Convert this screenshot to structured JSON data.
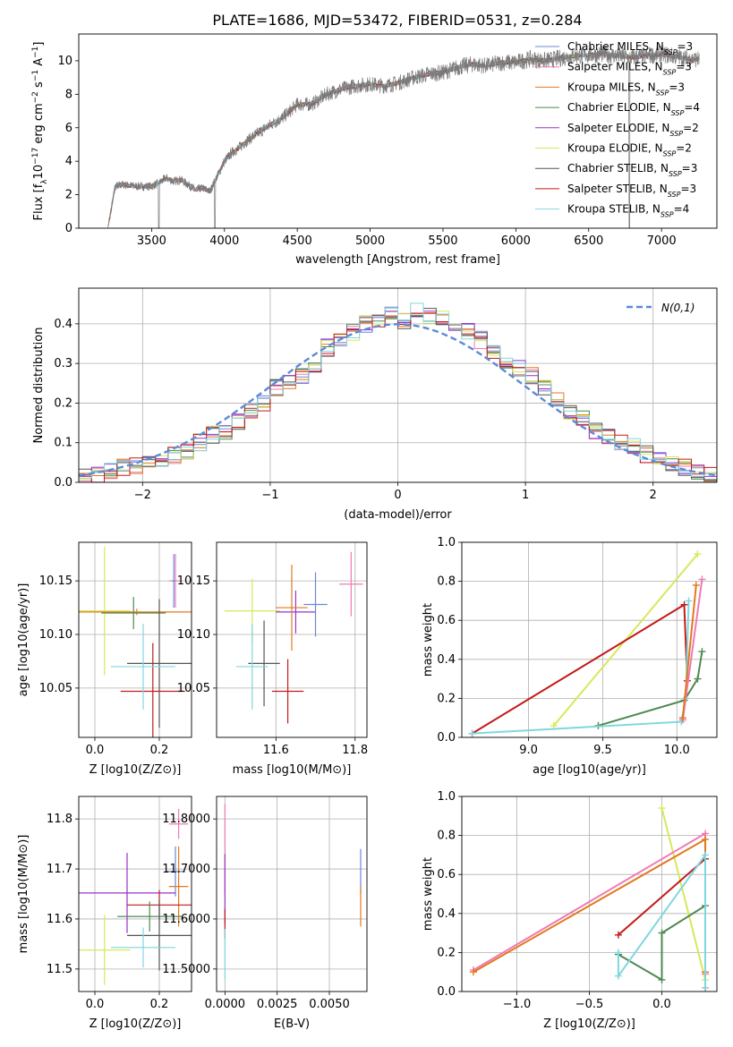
{
  "chart_data": [
    {
      "type": "line",
      "title": "PLATE=1686, MJD=53472, FIBERID=0531, z=0.284",
      "xlabel": "wavelength [Angstrom, rest frame]",
      "ylabel": "Flux [f_λ10^-17 erg cm^-2 s^-1 A^-1]",
      "xlim": [
        3000,
        7380
      ],
      "ylim": [
        0,
        11.6
      ],
      "xticks": [
        3500,
        4000,
        4500,
        5000,
        5500,
        6000,
        6500,
        7000
      ],
      "yticks": [
        0,
        2,
        4,
        6,
        8,
        10
      ],
      "grid": false,
      "legend_position": "right",
      "data_x": [
        3200,
        3250,
        3300,
        3400,
        3500,
        3550,
        3600,
        3650,
        3700,
        3750,
        3800,
        3850,
        3900,
        3950,
        4000,
        4050,
        4100,
        4150,
        4200,
        4300,
        4400,
        4500,
        4600,
        4700,
        4800,
        4900,
        5000,
        5100,
        5200,
        5300,
        5400,
        5500,
        5600,
        5700,
        5800,
        5900,
        6000,
        6100,
        6200,
        6400,
        6600,
        6800,
        7000,
        7200
      ],
      "data_y": [
        0,
        2.5,
        2.6,
        2.5,
        2.5,
        2.7,
        3.0,
        2.8,
        2.9,
        2.6,
        2.3,
        2.4,
        2.2,
        3.1,
        4.0,
        4.5,
        4.8,
        5.2,
        5.5,
        6.1,
        6.6,
        7.4,
        7.4,
        8.0,
        8.3,
        8.5,
        8.6,
        8.5,
        8.7,
        9.0,
        9.2,
        9.3,
        9.6,
        9.8,
        9.7,
        9.9,
        9.9,
        10.1,
        10.0,
        10.3,
        10.4,
        10.2,
        10.4,
        10.1
      ],
      "series": [
        {
          "name": "Chabrier MILES, N_SSP=3",
          "color": "#6b86d6"
        },
        {
          "name": "Salpeter MILES, N_SSP=3",
          "color": "#f07ab3"
        },
        {
          "name": "Kroupa MILES, N_SSP=3",
          "color": "#e07a1f"
        },
        {
          "name": "Chabrier ELODIE, N_SSP=4",
          "color": "#4d8a50"
        },
        {
          "name": "Salpeter ELODIE, N_SSP=2",
          "color": "#9b30c7"
        },
        {
          "name": "Kroupa ELODIE, N_SSP=2",
          "color": "#d8e85a"
        },
        {
          "name": "Chabrier STELIB, N_SSP=3",
          "color": "#555555"
        },
        {
          "name": "Salpeter STELIB, N_SSP=3",
          "color": "#c41a1a"
        },
        {
          "name": "Kroupa STELIB, N_SSP=4",
          "color": "#7fd7de"
        }
      ]
    },
    {
      "type": "line",
      "xlabel": "(data-model)/error",
      "ylabel": "Normed distribution",
      "xlim": [
        -2.5,
        2.5
      ],
      "ylim": [
        0,
        0.49
      ],
      "xticks": [
        -2,
        -1,
        0,
        1,
        2
      ],
      "yticks": [
        0.0,
        0.1,
        0.2,
        0.3,
        0.4
      ],
      "grid": true,
      "legend": "N(0,1)",
      "legend_position": "top-right",
      "hist_edges": [
        -2.5,
        -2.4,
        -2.3,
        -2.2,
        -2.1,
        -2.0,
        -1.9,
        -1.8,
        -1.7,
        -1.6,
        -1.5,
        -1.4,
        -1.3,
        -1.2,
        -1.1,
        -1.0,
        -0.9,
        -0.8,
        -0.7,
        -0.6,
        -0.5,
        -0.4,
        -0.3,
        -0.2,
        -0.1,
        0.0,
        0.1,
        0.2,
        0.3,
        0.4,
        0.5,
        0.6,
        0.7,
        0.8,
        0.9,
        1.0,
        1.1,
        1.2,
        1.3,
        1.4,
        1.5,
        1.6,
        1.7,
        1.8,
        1.9,
        2.0,
        2.1,
        2.2,
        2.3,
        2.4,
        2.5
      ],
      "hist_values": [
        0.02,
        0.02,
        0.03,
        0.04,
        0.04,
        0.05,
        0.06,
        0.07,
        0.08,
        0.1,
        0.12,
        0.13,
        0.15,
        0.18,
        0.2,
        0.24,
        0.25,
        0.27,
        0.3,
        0.34,
        0.36,
        0.38,
        0.4,
        0.41,
        0.42,
        0.41,
        0.43,
        0.42,
        0.41,
        0.4,
        0.38,
        0.36,
        0.33,
        0.31,
        0.29,
        0.27,
        0.24,
        0.21,
        0.18,
        0.16,
        0.13,
        0.12,
        0.1,
        0.09,
        0.07,
        0.06,
        0.05,
        0.04,
        0.03,
        0.02
      ]
    },
    {
      "type": "scatter",
      "xlabel": "Z [log10(Z/Z⊙)]",
      "ylabel": "age  [log10(age/yr)]",
      "xlim": [
        -0.05,
        0.3
      ],
      "ylim": [
        10.004,
        10.186
      ],
      "xticks": [
        0.0,
        0.2
      ],
      "yticks": [
        10.05,
        10.1,
        10.15
      ],
      "grid": true,
      "points": [
        {
          "x": 0.03,
          "y": 10.122,
          "xerr": 0.08,
          "yerr": 0.06,
          "color": "#d8e85a"
        },
        {
          "x": 0.13,
          "y": 10.121,
          "xerr": 0.25,
          "yerr": 0.003,
          "color": "#e07a1f"
        },
        {
          "x": 0.12,
          "y": 10.12,
          "xerr": 0.1,
          "yerr": 0.015,
          "color": "#4d8a50"
        },
        {
          "x": 0.25,
          "y": 10.15,
          "xerr": 0.02,
          "yerr": 0.025,
          "color": "#f07ab3"
        },
        {
          "x": 0.245,
          "y": 10.15,
          "xerr": 0.005,
          "yerr": 0.025,
          "color": "#6b86d6"
        },
        {
          "x": 0.2,
          "y": 10.073,
          "xerr": 0.1,
          "yerr": 0.06,
          "color": "#555555"
        },
        {
          "x": 0.18,
          "y": 10.047,
          "xerr": 0.1,
          "yerr": 0.045,
          "color": "#c41a1a"
        },
        {
          "x": 0.15,
          "y": 10.07,
          "xerr": 0.1,
          "yerr": 0.04,
          "color": "#7fd7de"
        }
      ]
    },
    {
      "type": "scatter",
      "xlabel": "mass [log10(M/M⊙)]",
      "xlim": [
        11.45,
        11.83
      ],
      "ylim": [
        10.004,
        10.186
      ],
      "xticks": [
        11.6,
        11.8
      ],
      "yticks": [
        10.05,
        10.1,
        10.15
      ],
      "grid": true,
      "points": [
        {
          "x": 11.54,
          "y": 10.122,
          "xerr": 0.07,
          "yerr": 0.03,
          "color": "#d8e85a"
        },
        {
          "x": 11.65,
          "y": 10.121,
          "xerr": 0.05,
          "yerr": 0.02,
          "color": "#9b30c7"
        },
        {
          "x": 11.64,
          "y": 10.125,
          "xerr": 0.04,
          "yerr": 0.04,
          "color": "#e07a1f"
        },
        {
          "x": 11.79,
          "y": 10.147,
          "xerr": 0.03,
          "yerr": 0.03,
          "color": "#f07ab3"
        },
        {
          "x": 11.7,
          "y": 10.128,
          "xerr": 0.03,
          "yerr": 0.03,
          "color": "#6b86d6"
        },
        {
          "x": 11.57,
          "y": 10.073,
          "xerr": 0.04,
          "yerr": 0.04,
          "color": "#555555"
        },
        {
          "x": 11.63,
          "y": 10.047,
          "xerr": 0.04,
          "yerr": 0.03,
          "color": "#c41a1a"
        },
        {
          "x": 11.54,
          "y": 10.07,
          "xerr": 0.04,
          "yerr": 0.04,
          "color": "#7fd7de"
        }
      ]
    },
    {
      "type": "line",
      "xlabel": "age  [log10(age/yr)]",
      "ylabel": "mass weight",
      "xlim": [
        8.55,
        10.27
      ],
      "ylim": [
        0,
        1.0
      ],
      "xticks": [
        9.0,
        9.5,
        10.0
      ],
      "yticks": [
        0.0,
        0.2,
        0.4,
        0.6,
        0.8,
        1.0
      ],
      "grid": true,
      "series": [
        {
          "name": "Kroupa ELODIE",
          "color": "#d8e85a",
          "x": [
            9.17,
            10.14
          ],
          "y": [
            0.06,
            0.94
          ]
        },
        {
          "name": "Salpeter STELIB",
          "color": "#c41a1a",
          "x": [
            8.62,
            10.05,
            10.07
          ],
          "y": [
            0.02,
            0.68,
            0.29
          ]
        },
        {
          "name": "Chabrier ELODIE",
          "color": "#4d8a50",
          "x": [
            9.47,
            10.05,
            10.14,
            10.17
          ],
          "y": [
            0.06,
            0.19,
            0.3,
            0.44
          ]
        },
        {
          "name": "Kroupa STELIB",
          "color": "#7fd7de",
          "x": [
            8.62,
            10.03,
            10.06,
            10.08
          ],
          "y": [
            0.02,
            0.08,
            0.2,
            0.7
          ]
        },
        {
          "name": "Salpeter MILES",
          "color": "#f07ab3",
          "x": [
            10.04,
            10.17
          ],
          "y": [
            0.09,
            0.81
          ]
        },
        {
          "name": "Kroupa MILES",
          "color": "#e07a1f",
          "x": [
            10.04,
            10.13
          ],
          "y": [
            0.1,
            0.78
          ]
        }
      ]
    },
    {
      "type": "scatter",
      "xlabel": "Z [log10(Z/Z⊙)]",
      "ylabel": "mass [log10(M/M⊙)]",
      "xlim": [
        -0.05,
        0.3
      ],
      "ylim": [
        11.455,
        11.845
      ],
      "xticks": [
        0.0,
        0.2
      ],
      "yticks": [
        11.5,
        11.6,
        11.7,
        11.8
      ],
      "grid": true,
      "points": [
        {
          "x": 0.26,
          "y": 11.79,
          "xerr": 0.03,
          "yerr": 0.03,
          "color": "#f07ab3"
        },
        {
          "x": 0.25,
          "y": 11.695,
          "xerr": 0.03,
          "yerr": 0.05,
          "color": "#6b86d6"
        },
        {
          "x": 0.26,
          "y": 11.665,
          "xerr": 0.03,
          "yerr": 0.08,
          "color": "#e07a1f"
        },
        {
          "x": 0.1,
          "y": 11.652,
          "xerr": 0.15,
          "yerr": 0.08,
          "color": "#9b30c7"
        },
        {
          "x": 0.2,
          "y": 11.628,
          "xerr": 0.1,
          "yerr": 0.03,
          "color": "#c41a1a"
        },
        {
          "x": 0.17,
          "y": 11.605,
          "xerr": 0.1,
          "yerr": 0.03,
          "color": "#4d8a50"
        },
        {
          "x": 0.2,
          "y": 11.567,
          "xerr": 0.1,
          "yerr": 0.07,
          "color": "#555555"
        },
        {
          "x": 0.03,
          "y": 11.538,
          "xerr": 0.08,
          "yerr": 0.07,
          "color": "#d8e85a"
        },
        {
          "x": 0.15,
          "y": 11.543,
          "xerr": 0.1,
          "yerr": 0.04,
          "color": "#7fd7de"
        }
      ]
    },
    {
      "type": "scatter",
      "xlabel": "E(B-V)",
      "xlim": [
        -0.0004,
        0.0068
      ],
      "ylim": [
        11.455,
        11.845
      ],
      "xticks": [
        0.0,
        0.0025,
        0.005
      ],
      "yticks": [
        11.5,
        11.6,
        11.7,
        11.8
      ],
      "grid": true,
      "points": [
        {
          "x": 0.0,
          "y": 11.74,
          "yerr": 0.09,
          "color": "#f07ab3"
        },
        {
          "x": 0.0,
          "y": 11.66,
          "yerr": 0.07,
          "color": "#9b30c7"
        },
        {
          "x": 0.0,
          "y": 11.59,
          "yerr": 0.03,
          "color": "#c41a1a"
        },
        {
          "x": 0.0,
          "y": 11.53,
          "yerr": 0.05,
          "color": "#7fd7de"
        },
        {
          "x": 0.0065,
          "y": 11.695,
          "yerr": 0.045,
          "color": "#6b86d6"
        },
        {
          "x": 0.0065,
          "y": 11.625,
          "yerr": 0.04,
          "color": "#e07a1f"
        }
      ]
    },
    {
      "type": "line",
      "xlabel": "Z [log10(Z/Z⊙)]",
      "ylabel": "mass weight",
      "xlim": [
        -1.38,
        0.38
      ],
      "ylim": [
        0,
        1.0
      ],
      "xticks": [
        -1.0,
        -0.5,
        0.0
      ],
      "yticks": [
        0.0,
        0.2,
        0.4,
        0.6,
        0.8,
        1.0
      ],
      "grid": true,
      "series": [
        {
          "name": "Kroupa ELODIE",
          "color": "#d8e85a",
          "x": [
            0.0,
            0.3
          ],
          "y": [
            0.94,
            0.06
          ]
        },
        {
          "name": "Salpeter MILES",
          "color": "#f07ab3",
          "x": [
            -1.3,
            0.3,
            0.3
          ],
          "y": [
            0.11,
            0.81,
            0.09
          ]
        },
        {
          "name": "Kroupa MILES",
          "color": "#e07a1f",
          "x": [
            -1.3,
            0.3,
            0.3
          ],
          "y": [
            0.1,
            0.78,
            0.1
          ]
        },
        {
          "name": "Salpeter STELIB",
          "color": "#c41a1a",
          "x": [
            -0.3,
            0.3,
            0.3
          ],
          "y": [
            0.29,
            0.68,
            0.02
          ]
        },
        {
          "name": "Chabrier ELODIE",
          "color": "#4d8a50",
          "x": [
            -0.3,
            0.0,
            0.0,
            0.3
          ],
          "y": [
            0.19,
            0.06,
            0.3,
            0.44
          ]
        },
        {
          "name": "Kroupa STELIB",
          "color": "#7fd7de",
          "x": [
            -0.3,
            -0.3,
            0.3,
            0.3
          ],
          "y": [
            0.2,
            0.08,
            0.7,
            0.02
          ]
        }
      ]
    }
  ]
}
